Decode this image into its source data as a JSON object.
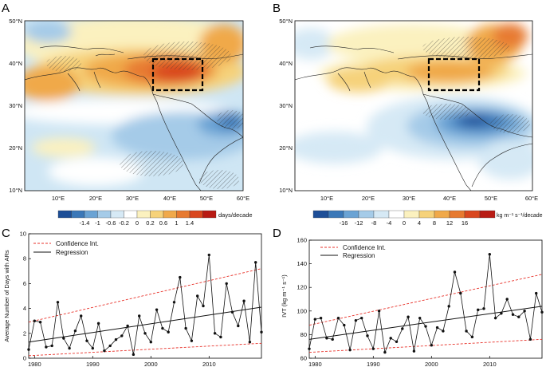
{
  "panels": {
    "A": {
      "letter": "A",
      "lat_ticks": [
        "50°N",
        "40°N",
        "30°N",
        "20°N",
        "10°N"
      ],
      "lon_ticks": [
        "10°E",
        "20°E",
        "30°E",
        "40°E",
        "50°E",
        "60°E"
      ],
      "colorbar": {
        "ticks": [
          "-1.4",
          "-1",
          "-0.6",
          "-0.2",
          "0",
          "0.2",
          "0.6",
          "1",
          "1.4"
        ],
        "unit": "days/decade",
        "colors": [
          "#1d4e97",
          "#3b78b8",
          "#6aa3d4",
          "#a5cbe8",
          "#d6e9f5",
          "#ffffff",
          "#fbf1bf",
          "#f6d27a",
          "#f0a94a",
          "#e77a30",
          "#d9471f",
          "#b81b14"
        ]
      }
    },
    "B": {
      "letter": "B",
      "lat_ticks": [
        "50°N",
        "40°N",
        "30°N",
        "20°N",
        "10°N"
      ],
      "lon_ticks": [
        "10°E",
        "20°E",
        "30°E",
        "40°E",
        "50°E",
        "60°E"
      ],
      "colorbar": {
        "ticks": [
          "-16",
          "-12",
          "-8",
          "-4",
          "0",
          "4",
          "8",
          "12",
          "16"
        ],
        "unit": "kg m⁻¹ s⁻¹/decade",
        "colors": [
          "#1d4e97",
          "#3b78b8",
          "#6aa3d4",
          "#a5cbe8",
          "#d6e9f5",
          "#ffffff",
          "#fbf1bf",
          "#f6d27a",
          "#f0a94a",
          "#e77a30",
          "#d9471f",
          "#b81b14"
        ]
      }
    }
  },
  "chart_data": [
    {
      "panel": "C",
      "type": "line",
      "ylabel": "Average Number of Days with ARs",
      "xlabel": "",
      "xlim": [
        1979,
        2019
      ],
      "ylim": [
        0,
        10
      ],
      "xticks": [
        1980,
        1990,
        2000,
        2010
      ],
      "yticks": [
        0,
        2,
        4,
        6,
        8,
        10
      ],
      "legend": {
        "placement": "top-left",
        "entries": [
          "Confidence Int.",
          "Regression"
        ]
      },
      "x": [
        1979,
        1980,
        1981,
        1982,
        1983,
        1984,
        1985,
        1986,
        1987,
        1988,
        1989,
        1990,
        1991,
        1992,
        1993,
        1994,
        1995,
        1996,
        1997,
        1998,
        1999,
        2000,
        2001,
        2002,
        2003,
        2004,
        2005,
        2006,
        2007,
        2008,
        2009,
        2010,
        2011,
        2012,
        2013,
        2014,
        2015,
        2016,
        2017,
        2018,
        2019
      ],
      "series": [
        {
          "name": "Average Number of Days with ARs",
          "values": [
            0.7,
            3.0,
            2.9,
            0.9,
            1.0,
            4.5,
            1.6,
            0.8,
            2.2,
            3.4,
            1.4,
            0.8,
            2.8,
            0.6,
            1.0,
            1.5,
            1.8,
            2.6,
            0.3,
            3.4,
            2.0,
            1.3,
            3.9,
            2.4,
            2.1,
            4.5,
            6.5,
            2.4,
            1.4,
            5.0,
            4.2,
            8.3,
            2.0,
            1.7,
            6.0,
            3.7,
            2.6,
            4.6,
            1.3,
            7.7,
            2.1
          ]
        }
      ],
      "regression": [
        1.3,
        4.1
      ],
      "confidence_upper": [
        2.9,
        7.2
      ],
      "confidence_lower": [
        0.2,
        1.2
      ]
    },
    {
      "panel": "D",
      "type": "line",
      "ylabel": "IVT (kg m⁻¹ s⁻¹)",
      "xlabel": "",
      "xlim": [
        1979,
        2019
      ],
      "ylim": [
        60,
        160
      ],
      "xticks": [
        1980,
        1990,
        2000,
        2010
      ],
      "yticks": [
        60,
        80,
        100,
        120,
        140,
        160
      ],
      "legend": {
        "placement": "top-left",
        "entries": [
          "Confidence Int.",
          "Regression"
        ]
      },
      "x": [
        1979,
        1980,
        1981,
        1982,
        1983,
        1984,
        1985,
        1986,
        1987,
        1988,
        1989,
        1990,
        1991,
        1992,
        1993,
        1994,
        1995,
        1996,
        1997,
        1998,
        1999,
        2000,
        2001,
        2002,
        2003,
        2004,
        2005,
        2006,
        2007,
        2008,
        2009,
        2010,
        2011,
        2012,
        2013,
        2014,
        2015,
        2016,
        2017,
        2018,
        2019
      ],
      "series": [
        {
          "name": "IVT",
          "values": [
            68,
            93,
            94,
            77,
            76,
            94,
            88,
            67,
            92,
            94,
            79,
            68,
            100,
            65,
            77,
            74,
            85,
            95,
            66,
            94,
            87,
            71,
            86,
            83,
            104,
            133,
            115,
            83,
            78,
            101,
            102,
            148,
            94,
            98,
            110,
            97,
            95,
            100,
            76,
            115,
            99
          ]
        }
      ],
      "regression": [
        76,
        104
      ],
      "confidence_upper": [
        88,
        131
      ],
      "confidence_lower": [
        65,
        76
      ]
    }
  ],
  "legend_labels": {
    "confidence": "Confidence Int.",
    "regression": "Regression"
  }
}
